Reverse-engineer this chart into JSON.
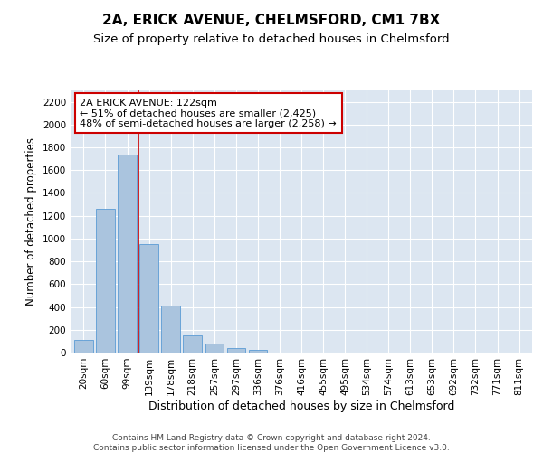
{
  "title": "2A, ERICK AVENUE, CHELMSFORD, CM1 7BX",
  "subtitle": "Size of property relative to detached houses in Chelmsford",
  "xlabel": "Distribution of detached houses by size in Chelmsford",
  "ylabel": "Number of detached properties",
  "footer_line1": "Contains HM Land Registry data © Crown copyright and database right 2024.",
  "footer_line2": "Contains public sector information licensed under the Open Government Licence v3.0.",
  "categories": [
    "20sqm",
    "60sqm",
    "99sqm",
    "139sqm",
    "178sqm",
    "218sqm",
    "257sqm",
    "297sqm",
    "336sqm",
    "376sqm",
    "416sqm",
    "455sqm",
    "495sqm",
    "534sqm",
    "574sqm",
    "613sqm",
    "653sqm",
    "692sqm",
    "732sqm",
    "771sqm",
    "811sqm"
  ],
  "values": [
    115,
    1262,
    1733,
    950,
    410,
    153,
    78,
    42,
    22,
    0,
    0,
    0,
    0,
    0,
    0,
    0,
    0,
    0,
    0,
    0,
    0
  ],
  "bar_color": "#aac4de",
  "bar_edge_color": "#5b9bd5",
  "vline_color": "#cc0000",
  "annotation_text": "2A ERICK AVENUE: 122sqm\n← 51% of detached houses are smaller (2,425)\n48% of semi-detached houses are larger (2,258) →",
  "annotation_box_color": "#ffffff",
  "annotation_box_edge_color": "#cc0000",
  "ylim": [
    0,
    2300
  ],
  "yticks": [
    0,
    200,
    400,
    600,
    800,
    1000,
    1200,
    1400,
    1600,
    1800,
    2000,
    2200
  ],
  "plot_bg_color": "#dce6f1",
  "title_fontsize": 11,
  "subtitle_fontsize": 9.5,
  "tick_fontsize": 7.5,
  "ylabel_fontsize": 8.5,
  "xlabel_fontsize": 9,
  "annotation_fontsize": 8,
  "footer_fontsize": 6.5
}
